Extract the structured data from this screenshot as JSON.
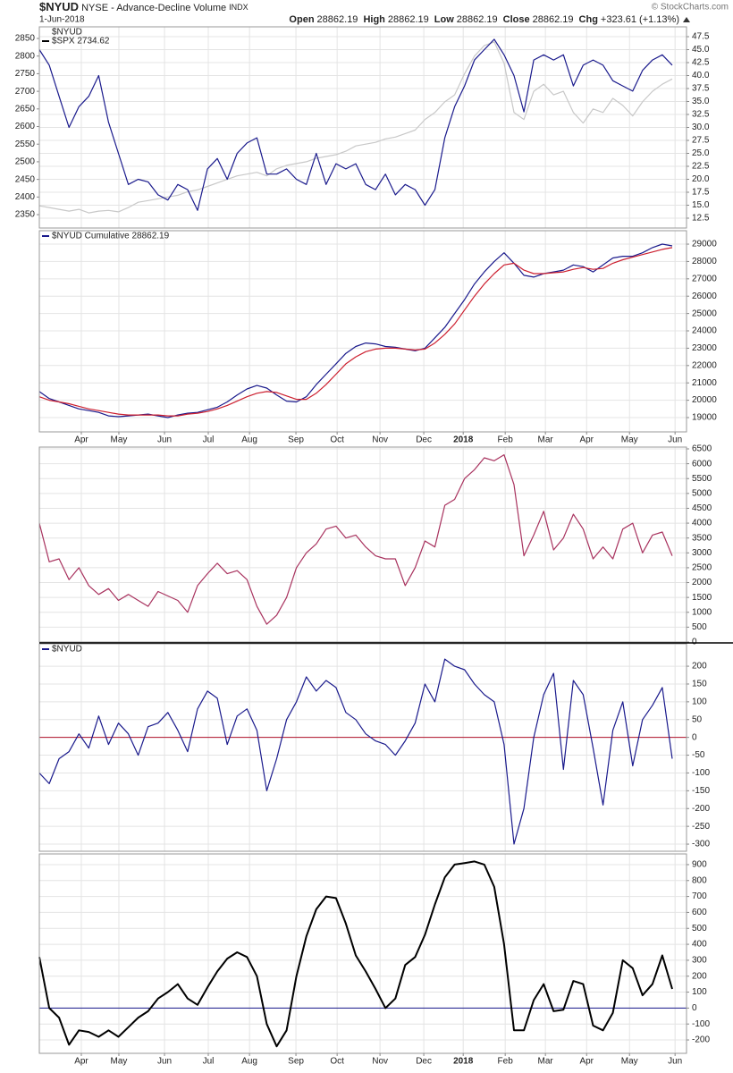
{
  "header": {
    "ticker": "$NYUD",
    "name": "NYSE - Advance-Decline Volume",
    "suffix": "INDX",
    "date": "1-Jun-2018",
    "copyright": "© StockCharts.com",
    "stats": [
      {
        "label": "Open",
        "value": "28862.19"
      },
      {
        "label": "High",
        "value": "28862.19"
      },
      {
        "label": "Low",
        "value": "28862.19"
      },
      {
        "label": "Close",
        "value": "28862.19"
      },
      {
        "label": "Chg",
        "value": "+323.61 (+1.13%)"
      }
    ]
  },
  "chart_data": [
    {
      "type": "line",
      "grid": true,
      "xlim": [
        0,
        65.5
      ],
      "ylim": [
        10.6,
        49.4
      ],
      "y2lim": [
        2312,
        2883
      ],
      "yticks": [
        12.5,
        {
          "value": 15,
          "label": "15.0"
        },
        17.5,
        {
          "value": 20,
          "label": "20.0"
        },
        22.5,
        {
          "value": 25,
          "label": "25.0"
        },
        27.5,
        {
          "value": 30,
          "label": "30.0"
        },
        32.5,
        {
          "value": 35,
          "label": "35.0"
        },
        37.5,
        {
          "value": 40,
          "label": "40.0"
        },
        42.5,
        {
          "value": 45,
          "label": "45.0"
        },
        47.5
      ],
      "y2ticks": [
        2350,
        2400,
        2450,
        2500,
        2550,
        2600,
        2650,
        2700,
        2750,
        2800,
        2850
      ],
      "series": [
        {
          "name": "$SPX 2734.62",
          "color": "#c8c8c8",
          "axis": "y2",
          "values": [
            2375,
            2370,
            2365,
            2360,
            2365,
            2355,
            2360,
            2362,
            2358,
            2370,
            2385,
            2390,
            2395,
            2400,
            2405,
            2415,
            2420,
            2430,
            2440,
            2450,
            2460,
            2465,
            2470,
            2460,
            2480,
            2490,
            2495,
            2500,
            2510,
            2515,
            2520,
            2530,
            2545,
            2550,
            2555,
            2565,
            2570,
            2580,
            2590,
            2620,
            2640,
            2670,
            2690,
            2750,
            2800,
            2830,
            2840,
            2780,
            2640,
            2620,
            2700,
            2720,
            2690,
            2700,
            2640,
            2610,
            2650,
            2640,
            2680,
            2660,
            2630,
            2670,
            2700,
            2720,
            2735
          ]
        },
        {
          "name": "$NYUD",
          "color": "#1a1a8c",
          "values": [
            45,
            42,
            36,
            30,
            34,
            36,
            40,
            31,
            25,
            19,
            20,
            19.5,
            17,
            16,
            19,
            18,
            14,
            22,
            24,
            20,
            25,
            27,
            28,
            21,
            21,
            22,
            20,
            19,
            25,
            19,
            23,
            22,
            23,
            19,
            18,
            21,
            17,
            19,
            18,
            15,
            18,
            28,
            34,
            38,
            43,
            45,
            47,
            44,
            40,
            33,
            43,
            44,
            43,
            44,
            38,
            42,
            43,
            42,
            39,
            38,
            37,
            41,
            43,
            44,
            42
          ]
        }
      ]
    },
    {
      "type": "line",
      "grid": true,
      "xlim": [
        0,
        65.5
      ],
      "ylim": [
        18175,
        29775
      ],
      "yticks": [
        19000,
        20000,
        21000,
        22000,
        23000,
        24000,
        25000,
        26000,
        27000,
        28000,
        29000
      ],
      "xticks": [
        {
          "value": 4.25,
          "label": "Apr"
        },
        {
          "value": 8.05,
          "label": "May"
        },
        {
          "value": 12.67,
          "label": "Jun"
        },
        {
          "value": 17.1,
          "label": "Jul"
        },
        {
          "value": 21.27,
          "label": "Aug"
        },
        {
          "value": 25.97,
          "label": "Sep"
        },
        {
          "value": 30.14,
          "label": "Oct"
        },
        {
          "value": 34.48,
          "label": "Nov"
        },
        {
          "value": 38.91,
          "label": "Dec"
        },
        {
          "value": 42.9,
          "label": "2018"
        },
        {
          "value": 47.15,
          "label": "Feb"
        },
        {
          "value": 51.22,
          "label": "Mar"
        },
        {
          "value": 55.39,
          "label": "Apr"
        },
        {
          "value": 59.73,
          "label": "May"
        },
        {
          "value": 64.34,
          "label": "Jun"
        }
      ],
      "series": [
        {
          "name": "$NYUD Cumulative 28862.19",
          "color": "#1a1a8c",
          "values": [
            20500,
            20100,
            19900,
            19700,
            19500,
            19400,
            19300,
            19100,
            19050,
            19100,
            19150,
            19200,
            19100,
            19000,
            19150,
            19250,
            19300,
            19450,
            19600,
            19900,
            20300,
            20650,
            20850,
            20700,
            20300,
            19950,
            19900,
            20200,
            20900,
            21500,
            22100,
            22700,
            23100,
            23300,
            23250,
            23100,
            23050,
            22950,
            22850,
            23000,
            23600,
            24200,
            25000,
            25800,
            26700,
            27400,
            28000,
            28500,
            27900,
            27200,
            27100,
            27300,
            27400,
            27500,
            27800,
            27700,
            27400,
            27800,
            28200,
            28300,
            28300,
            28500,
            28800,
            29000,
            28900
          ]
        },
        {
          "color": "#cc1f2f",
          "values": [
            20200,
            20000,
            19900,
            19800,
            19650,
            19500,
            19400,
            19300,
            19200,
            19150,
            19150,
            19150,
            19150,
            19100,
            19100,
            19200,
            19250,
            19350,
            19500,
            19700,
            19950,
            20200,
            20400,
            20500,
            20450,
            20250,
            20050,
            20050,
            20400,
            20900,
            21500,
            22100,
            22500,
            22800,
            22950,
            23000,
            23000,
            22950,
            22900,
            22950,
            23300,
            23800,
            24400,
            25200,
            26000,
            26700,
            27300,
            27800,
            27900,
            27500,
            27300,
            27300,
            27350,
            27400,
            27550,
            27650,
            27550,
            27600,
            27900,
            28100,
            28250,
            28400,
            28550,
            28700,
            28800
          ]
        }
      ]
    },
    {
      "type": "line",
      "grid": true,
      "xlim": [
        0,
        65.5
      ],
      "ylim": [
        0,
        6560
      ],
      "yticks": [
        0,
        500,
        1000,
        1500,
        2000,
        2500,
        3000,
        3500,
        4000,
        4500,
        5000,
        5500,
        6000,
        6500
      ],
      "series": [
        {
          "color": "#a8325e",
          "values": [
            4000,
            2700,
            2800,
            2100,
            2500,
            1900,
            1600,
            1800,
            1400,
            1600,
            1400,
            1200,
            1700,
            1550,
            1400,
            1000,
            1900,
            2300,
            2650,
            2300,
            2400,
            2100,
            1200,
            600,
            900,
            1500,
            2500,
            3000,
            3300,
            3800,
            3900,
            3500,
            3600,
            3200,
            2900,
            2800,
            2800,
            1900,
            2500,
            3400,
            3200,
            4600,
            4800,
            5500,
            5800,
            6200,
            6100,
            6300,
            5300,
            2900,
            3600,
            4400,
            3100,
            3500,
            4300,
            3800,
            2800,
            3200,
            2800,
            3800,
            4000,
            3000,
            3600,
            3700,
            2900
          ]
        }
      ]
    },
    {
      "type": "line",
      "grid": true,
      "xlim": [
        0,
        65.5
      ],
      "ylim": [
        -320,
        263
      ],
      "yticks": [
        -300,
        -250,
        -200,
        -150,
        -100,
        -50,
        0,
        50,
        100,
        150,
        200
      ],
      "reference_line": {
        "value": 0,
        "color": "#b0102a"
      },
      "series": [
        {
          "name": "$NYUD",
          "color": "#1a1a8c",
          "values": [
            -100,
            -130,
            -60,
            -40,
            10,
            -30,
            60,
            -20,
            40,
            10,
            -50,
            30,
            40,
            70,
            20,
            -40,
            80,
            130,
            110,
            -20,
            60,
            80,
            20,
            -150,
            -60,
            50,
            100,
            170,
            130,
            160,
            140,
            70,
            50,
            10,
            -10,
            -20,
            -50,
            -10,
            40,
            150,
            100,
            220,
            200,
            190,
            150,
            120,
            100,
            -20,
            -300,
            -200,
            0,
            120,
            180,
            -90,
            160,
            120,
            -30,
            -190,
            20,
            100,
            -80,
            50,
            90,
            140,
            -60
          ]
        }
      ]
    },
    {
      "type": "line",
      "grid": true,
      "xlim": [
        0,
        65.5
      ],
      "ylim": [
        -284,
        967
      ],
      "yticks": [
        -200,
        -100,
        0,
        100,
        200,
        300,
        400,
        500,
        600,
        700,
        800,
        900
      ],
      "reference_line": {
        "value": 0,
        "color": "#1a1a8c"
      },
      "xticks": [
        {
          "value": 4.25,
          "label": "Apr"
        },
        {
          "value": 8.05,
          "label": "May"
        },
        {
          "value": 12.67,
          "label": "Jun"
        },
        {
          "value": 17.1,
          "label": "Jul"
        },
        {
          "value": 21.27,
          "label": "Aug"
        },
        {
          "value": 25.97,
          "label": "Sep"
        },
        {
          "value": 30.14,
          "label": "Oct"
        },
        {
          "value": 34.48,
          "label": "Nov"
        },
        {
          "value": 38.91,
          "label": "Dec"
        },
        {
          "value": 42.9,
          "label": "2018"
        },
        {
          "value": 47.15,
          "label": "Feb"
        },
        {
          "value": 51.22,
          "label": "Mar"
        },
        {
          "value": 55.39,
          "label": "Apr"
        },
        {
          "value": 59.73,
          "label": "May"
        },
        {
          "value": 64.34,
          "label": "Jun"
        }
      ],
      "series": [
        {
          "color": "#000000",
          "values": [
            320,
            0,
            -60,
            -230,
            -140,
            -150,
            -180,
            -140,
            -180,
            -120,
            -60,
            -20,
            60,
            100,
            150,
            60,
            20,
            130,
            230,
            310,
            350,
            320,
            200,
            -100,
            -240,
            -140,
            200,
            450,
            620,
            700,
            690,
            530,
            330,
            230,
            120,
            0,
            60,
            270,
            320,
            460,
            650,
            820,
            900,
            910,
            920,
            900,
            760,
            400,
            -140,
            -140,
            50,
            150,
            -20,
            -10,
            170,
            150,
            -110,
            -140,
            -30,
            300,
            250,
            80,
            150,
            330,
            120
          ]
        }
      ]
    }
  ]
}
